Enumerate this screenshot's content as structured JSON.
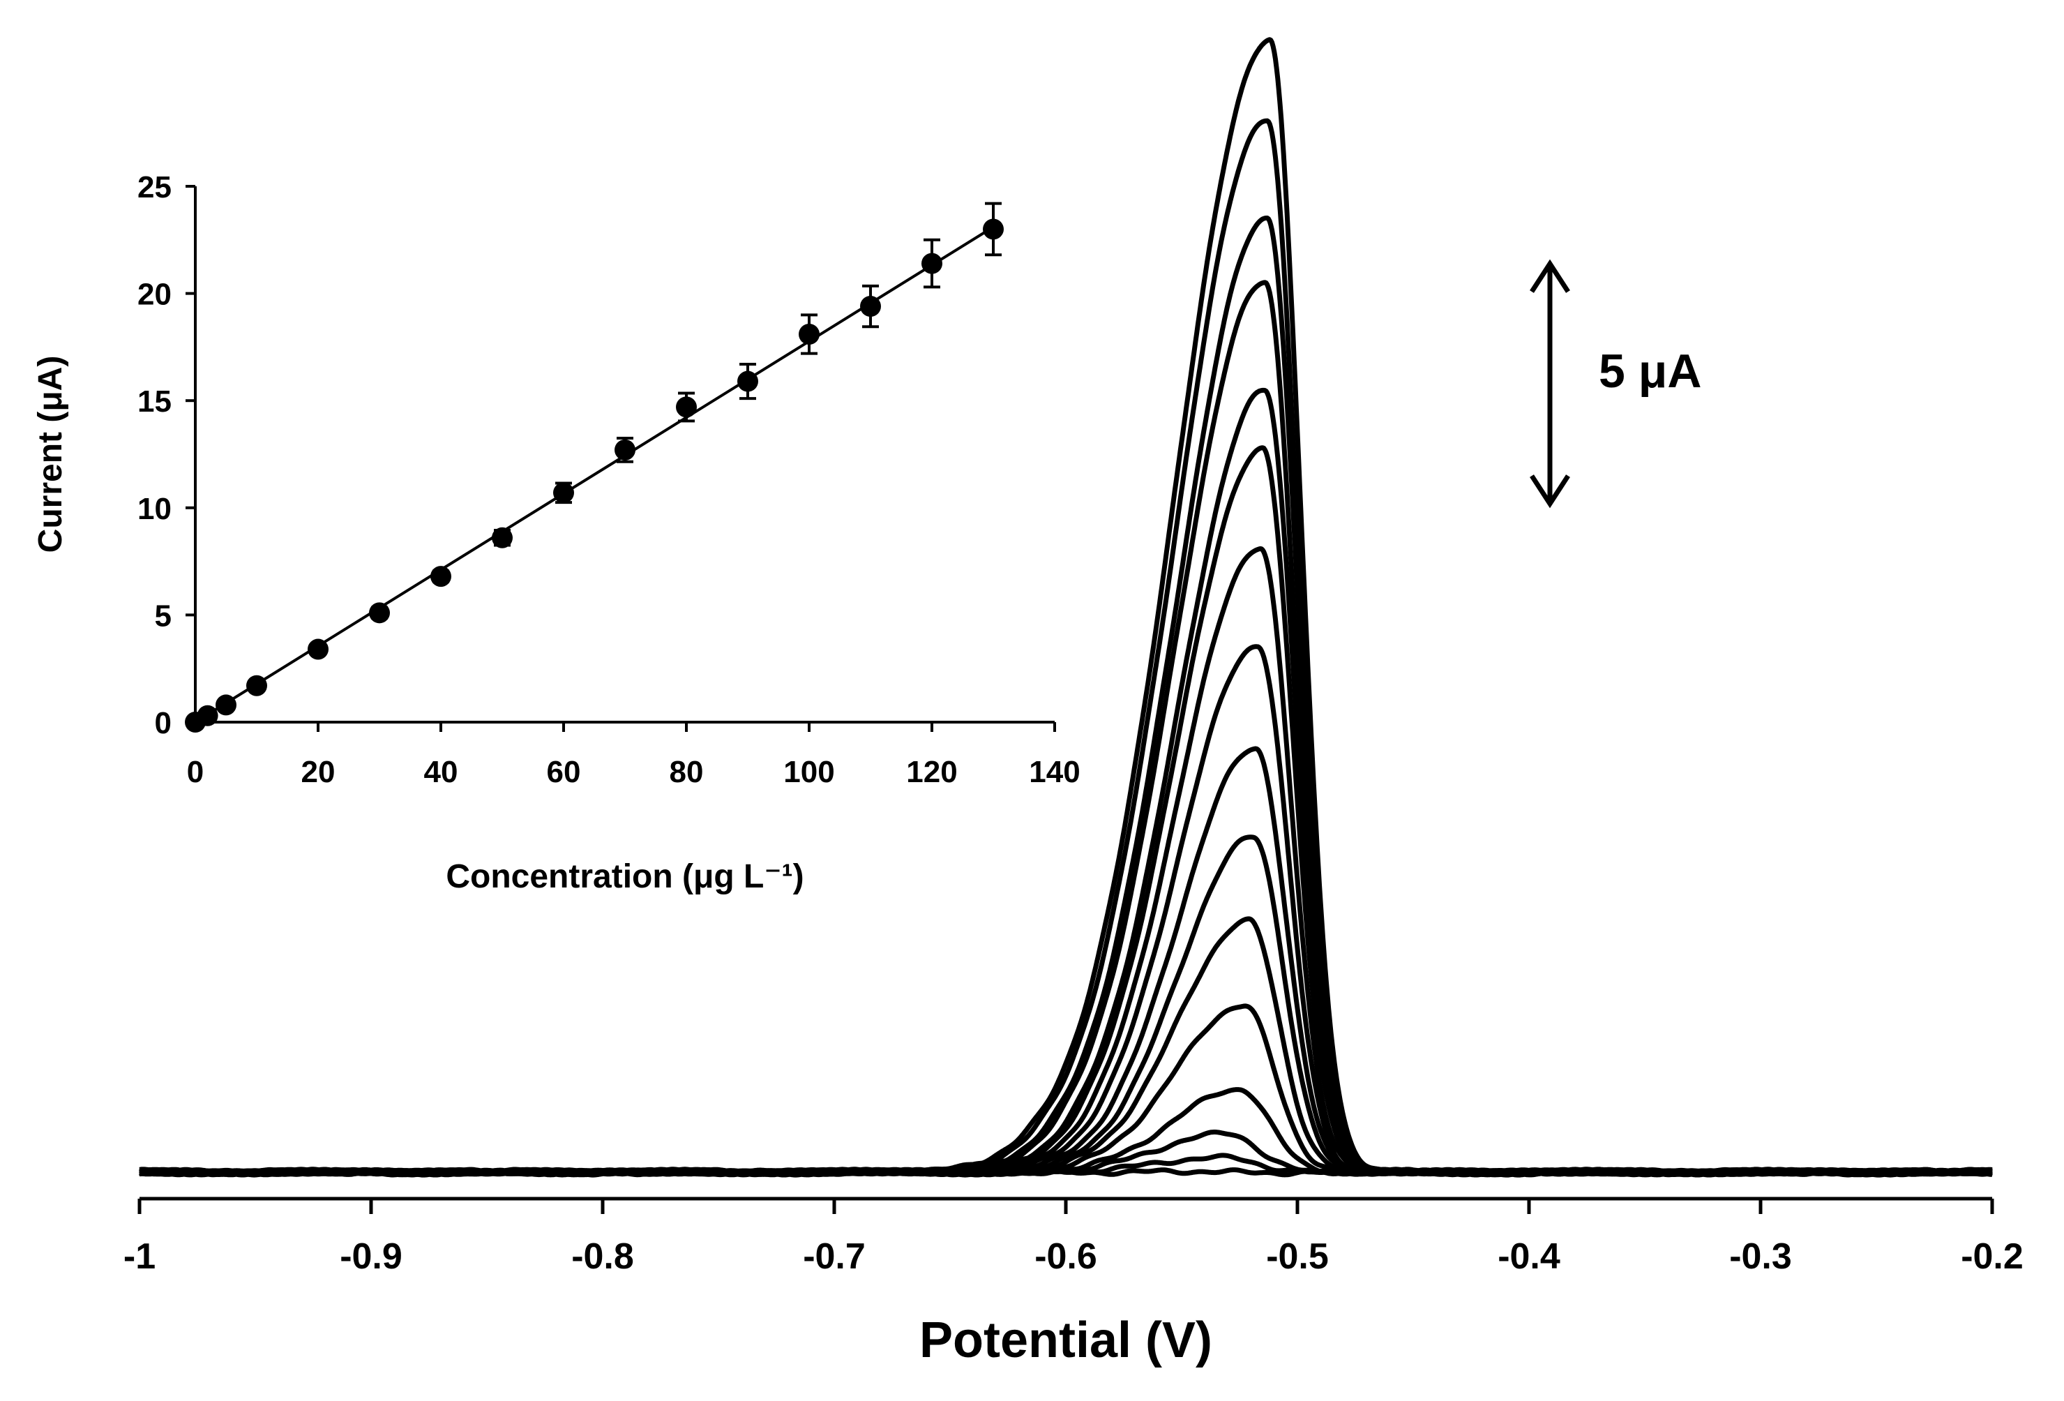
{
  "chart_data": [
    {
      "type": "line",
      "xlabel": "Potential (V)",
      "ylabel": "",
      "xlim": [
        -1.0,
        -0.2
      ],
      "x_ticks": [
        "-1",
        "-0.9",
        "-0.8",
        "-0.7",
        "-0.6",
        "-0.5",
        "-0.4",
        "-0.3",
        "-0.2"
      ],
      "y_axis_visible": false,
      "grid": false,
      "scale_bar": {
        "label": "5 μA",
        "value_uA": 5
      },
      "peak_potentials_V": [
        -0.53,
        -0.53,
        -0.53,
        -0.525,
        -0.523,
        -0.521,
        -0.519,
        -0.518,
        -0.517,
        -0.516,
        -0.515,
        -0.514,
        -0.514,
        -0.513,
        -0.513,
        -0.512
      ],
      "peak_currents_uA": [
        0.0,
        0.3,
        0.8,
        1.7,
        3.4,
        5.1,
        6.8,
        8.6,
        10.7,
        12.7,
        14.7,
        15.9,
        18.1,
        19.4,
        21.4,
        23.0
      ]
    },
    {
      "type": "scatter",
      "xlabel": "Concentration (μg L⁻¹)",
      "ylabel": "Current (μA)",
      "xlim": [
        0,
        140
      ],
      "ylim": [
        0,
        25
      ],
      "x_ticks": [
        "0",
        "20",
        "40",
        "60",
        "80",
        "100",
        "120",
        "140"
      ],
      "y_ticks": [
        "0",
        "5",
        "10",
        "15",
        "20",
        "25"
      ],
      "x": [
        0,
        2,
        5,
        10,
        20,
        30,
        40,
        50,
        60,
        70,
        80,
        90,
        100,
        110,
        120,
        130
      ],
      "y": [
        0.0,
        0.3,
        0.8,
        1.7,
        3.4,
        5.1,
        6.8,
        8.6,
        10.7,
        12.7,
        14.7,
        15.9,
        18.1,
        19.4,
        21.4,
        23.0
      ],
      "error": [
        0.1,
        0.1,
        0.1,
        0.15,
        0.2,
        0.25,
        0.25,
        0.35,
        0.45,
        0.55,
        0.65,
        0.8,
        0.9,
        0.95,
        1.1,
        1.2
      ],
      "fit_line": {
        "x": [
          0,
          130
        ],
        "y": [
          0.0,
          23.1
        ]
      },
      "grid": false
    }
  ]
}
